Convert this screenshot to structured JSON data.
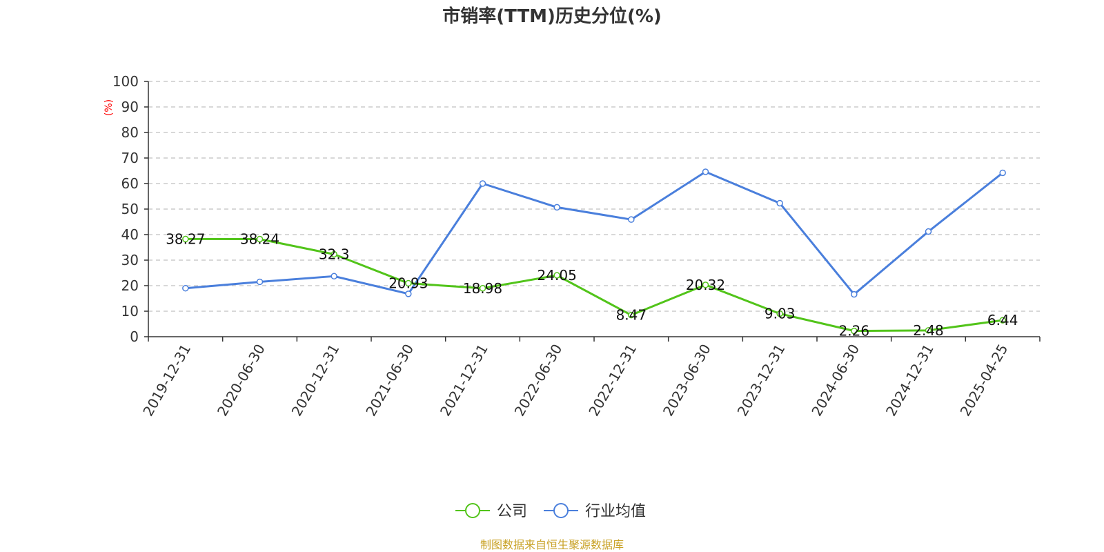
{
  "chart_data": {
    "type": "line",
    "title": "市销率(TTM)历史分位(%)",
    "ylabel": "(%)",
    "xlabel": "",
    "ylim": [
      0,
      100
    ],
    "yticks": [
      0,
      10,
      20,
      30,
      40,
      50,
      60,
      70,
      80,
      90,
      100
    ],
    "grid": true,
    "legend_position": "bottom-center",
    "categories": [
      "2019-12-31",
      "2020-06-30",
      "2020-12-31",
      "2021-06-30",
      "2021-12-31",
      "2022-06-30",
      "2022-12-31",
      "2023-06-30",
      "2023-12-31",
      "2024-06-30",
      "2024-12-31",
      "2025-04-25"
    ],
    "series": [
      {
        "name": "公司",
        "color": "#52c41a",
        "labeled": true,
        "values": [
          38.27,
          38.24,
          32.3,
          20.93,
          18.98,
          24.05,
          8.47,
          20.32,
          9.03,
          2.26,
          2.48,
          6.44
        ]
      },
      {
        "name": "行业均值",
        "color": "#4a7fdc",
        "labeled": false,
        "values": [
          19.0,
          21.5,
          23.7,
          16.8,
          60.0,
          50.7,
          45.9,
          64.6,
          52.3,
          16.6,
          41.2,
          64.2
        ]
      }
    ]
  },
  "source_text": "制图数据来自恒生聚源数据库",
  "colors": {
    "axis": "#333333",
    "grid": "#cccccc",
    "ylabel": "#ff0000",
    "source": "#c9a227"
  }
}
